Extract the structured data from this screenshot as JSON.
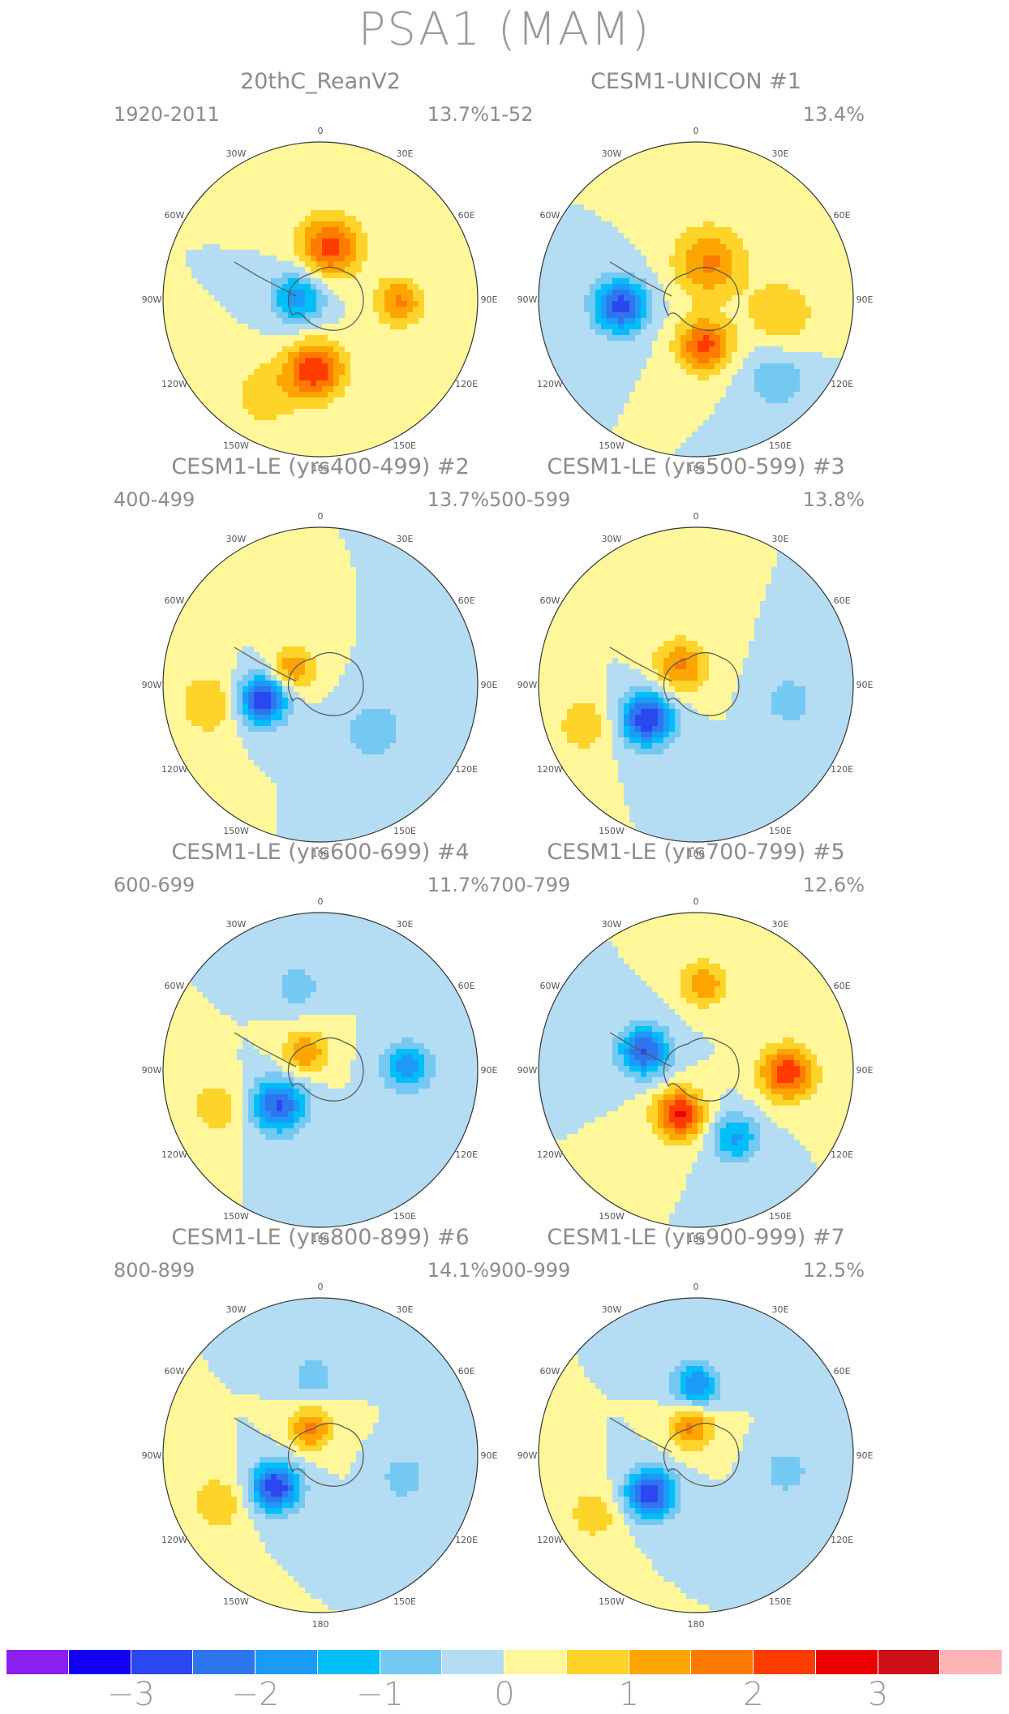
{
  "title": "PSA1 (MAM)",
  "lon_labels": [
    "0",
    "30E",
    "60E",
    "90E",
    "120E",
    "150E",
    "180",
    "150W",
    "120W",
    "90W",
    "60W",
    "30W"
  ],
  "panels": [
    {
      "title": "20thC_ReanV2",
      "period": "1920-2011",
      "pct": "13.7%",
      "blobs": [
        {
          "lon": 10,
          "r": 0.34,
          "v": 2.2,
          "s": 0.14
        },
        {
          "lon": -85,
          "r": 0.14,
          "v": -1.8,
          "s": 0.12
        },
        {
          "lon": 92,
          "r": 0.5,
          "v": 1.6,
          "s": 0.11
        },
        {
          "lon": -176,
          "r": 0.45,
          "v": 2.4,
          "s": 0.13
        },
        {
          "lon": -150,
          "r": 0.7,
          "v": 0.8,
          "s": 0.16
        }
      ]
    },
    {
      "title": "CESM1-UNICON    #1",
      "period": "1-52",
      "pct": "13.4%",
      "blobs": [
        {
          "lon": -95,
          "r": 0.48,
          "v": -2.8,
          "s": 0.12
        },
        {
          "lon": 20,
          "r": 0.25,
          "v": 1.6,
          "s": 0.16
        },
        {
          "lon": 170,
          "r": 0.3,
          "v": 2.2,
          "s": 0.12
        },
        {
          "lon": 100,
          "r": 0.55,
          "v": 1.0,
          "s": 0.15
        },
        {
          "lon": 135,
          "r": 0.72,
          "v": -0.9,
          "s": 0.14
        }
      ]
    },
    {
      "title": "CESM1-LE (yrs400-499) #2",
      "period": "400-499",
      "pct": "13.7%",
      "blobs": [
        {
          "lon": -105,
          "r": 0.38,
          "v": -3.0,
          "s": 0.11
        },
        {
          "lon": -60,
          "r": 0.2,
          "v": 1.5,
          "s": 0.1
        },
        {
          "lon": -100,
          "r": 0.72,
          "v": 1.0,
          "s": 0.14
        },
        {
          "lon": 130,
          "r": 0.45,
          "v": -0.9,
          "s": 0.14
        }
      ]
    },
    {
      "title": "CESM1-LE (yrs500-599) #3",
      "period": "500-599",
      "pct": "13.8%",
      "blobs": [
        {
          "lon": -125,
          "r": 0.38,
          "v": -3.0,
          "s": 0.12
        },
        {
          "lon": -40,
          "r": 0.15,
          "v": 1.6,
          "s": 0.12
        },
        {
          "lon": -110,
          "r": 0.75,
          "v": 0.9,
          "s": 0.13
        },
        {
          "lon": 100,
          "r": 0.6,
          "v": -0.8,
          "s": 0.12
        }
      ]
    },
    {
      "title": "CESM1-LE (yrs600-699) #4",
      "period": "600-699",
      "pct": "11.7%",
      "blobs": [
        {
          "lon": -130,
          "r": 0.35,
          "v": -2.6,
          "s": 0.12
        },
        {
          "lon": -40,
          "r": 0.15,
          "v": 1.5,
          "s": 0.1
        },
        {
          "lon": 88,
          "r": 0.55,
          "v": -1.8,
          "s": 0.11
        },
        {
          "lon": -15,
          "r": 0.55,
          "v": -0.9,
          "s": 0.1
        },
        {
          "lon": -110,
          "r": 0.7,
          "v": 0.9,
          "s": 0.12
        }
      ]
    },
    {
      "title": "CESM1-LE (yrs700-799) #5",
      "period": "700-799",
      "pct": "12.6%",
      "blobs": [
        {
          "lon": -70,
          "r": 0.35,
          "v": -2.6,
          "s": 0.11
        },
        {
          "lon": 92,
          "r": 0.58,
          "v": 2.4,
          "s": 0.12
        },
        {
          "lon": -160,
          "r": 0.3,
          "v": 2.6,
          "s": 0.11
        },
        {
          "lon": 150,
          "r": 0.5,
          "v": -1.6,
          "s": 0.11
        },
        {
          "lon": 5,
          "r": 0.55,
          "v": 1.5,
          "s": 0.1
        }
      ]
    },
    {
      "title": "CESM1-LE (yrs800-899) #6",
      "period": "800-899",
      "pct": "14.1%",
      "blobs": [
        {
          "lon": -125,
          "r": 0.35,
          "v": -3.0,
          "s": 0.11
        },
        {
          "lon": -20,
          "r": 0.18,
          "v": 1.6,
          "s": 0.1
        },
        {
          "lon": -115,
          "r": 0.72,
          "v": 0.9,
          "s": 0.13
        },
        {
          "lon": -5,
          "r": 0.5,
          "v": -0.9,
          "s": 0.1
        },
        {
          "lon": 105,
          "r": 0.55,
          "v": -0.9,
          "s": 0.1
        }
      ]
    },
    {
      "title": "CESM1-LE (yrs900-999) #7",
      "period": "900-999",
      "pct": "12.5%",
      "blobs": [
        {
          "lon": -130,
          "r": 0.38,
          "v": -3.0,
          "s": 0.11
        },
        {
          "lon": -10,
          "r": 0.18,
          "v": 1.6,
          "s": 0.1
        },
        {
          "lon": 0,
          "r": 0.45,
          "v": -2.0,
          "s": 0.1
        },
        {
          "lon": -120,
          "r": 0.75,
          "v": 0.8,
          "s": 0.13
        },
        {
          "lon": 100,
          "r": 0.58,
          "v": -0.9,
          "s": 0.1
        }
      ]
    }
  ],
  "colorbar": {
    "colors": [
      "#8a1ff0",
      "#1400f5",
      "#2b47ef",
      "#2e76ee",
      "#1c9af7",
      "#00bef7",
      "#74c9f2",
      "#b4dcf2",
      "#fff79a",
      "#fed42b",
      "#fda602",
      "#fe7b00",
      "#ff3c00",
      "#ec0001",
      "#cc1119",
      "#fdb4b6"
    ],
    "levels": [
      -3.5,
      -3,
      -2.5,
      -2,
      -1.5,
      -1,
      -0.5,
      0,
      0.5,
      1,
      1.5,
      2,
      2.5,
      3,
      3.5
    ],
    "tick_labels": [
      "−3",
      "−2",
      "−1",
      "0",
      "1",
      "2",
      "3"
    ]
  }
}
